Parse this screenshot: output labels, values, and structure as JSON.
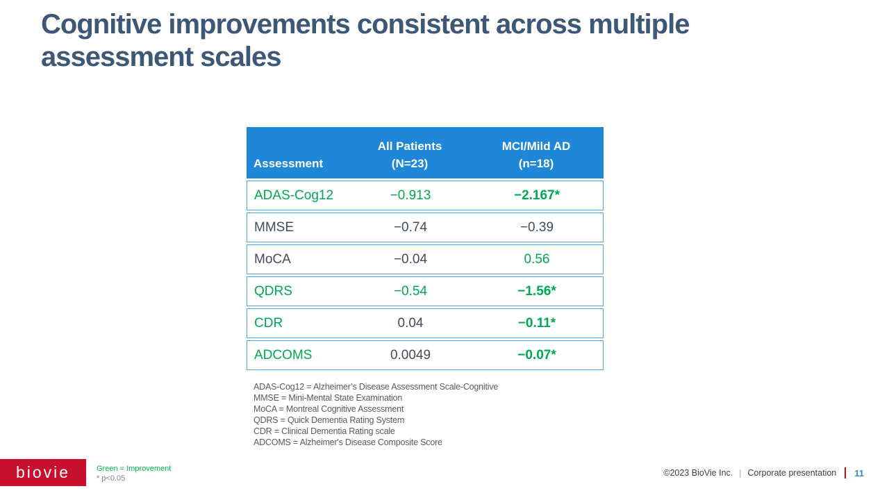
{
  "title": {
    "line1": "Cognitive improvements consistent across multiple",
    "line2": "assessment scales"
  },
  "table": {
    "header": {
      "assessment": "Assessment",
      "all_patients_line1": "All Patients",
      "all_patients_line2": "(N=23)",
      "mci_line1": "MCI/Mild AD",
      "mci_line2": "(n=18)"
    },
    "rows": [
      {
        "assessment": "ADAS-Cog12",
        "all_patients": "−0.913",
        "mci_mild_ad": "−2.167*"
      },
      {
        "assessment": "MMSE",
        "all_patients": "−0.74",
        "mci_mild_ad": "−0.39"
      },
      {
        "assessment": "MoCA",
        "all_patients": "−0.04",
        "mci_mild_ad": "0.56"
      },
      {
        "assessment": "QDRS",
        "all_patients": "−0.54",
        "mci_mild_ad": "−1.56*"
      },
      {
        "assessment": "CDR",
        "all_patients": "0.04",
        "mci_mild_ad": "−0.11*"
      },
      {
        "assessment": "ADCOMS",
        "all_patients": "0.0049",
        "mci_mild_ad": "−0.07*"
      }
    ]
  },
  "footnotes": [
    "ADAS-Cog12 = Alzheimer’s Disease Assessment Scale-Cognitive",
    "MMSE = Mini-Mental State Examination",
    "MoCA = Montreal Cognitive Assessment",
    "QDRS = Quick Dementia Rating System",
    "CDR = Clinical Dementia Rating scale",
    "ADCOMS = Alzheimer's Disease Composite Score"
  ],
  "legend": {
    "green_note": "Green = Improvement",
    "significance_note": "* p<0.05"
  },
  "footer": {
    "logo_text": "biovie",
    "copyright": "©2023 BioVie Inc.",
    "separator": "|",
    "presentation_label": "Corporate presentation",
    "page_number": "11"
  },
  "colors": {
    "header_blue": "#1E87D8",
    "table_border_blue": "#4D9FE0",
    "improvement_green": "#00A651",
    "note_green": "#00B050",
    "body_text_dark": "#414A5A",
    "title_text": "#3D5776",
    "footnote_grey": "#595959",
    "logo_red": "#C8102E",
    "footer_bar_red": "#A6141F",
    "page_number_blue": "#2E86D0"
  }
}
